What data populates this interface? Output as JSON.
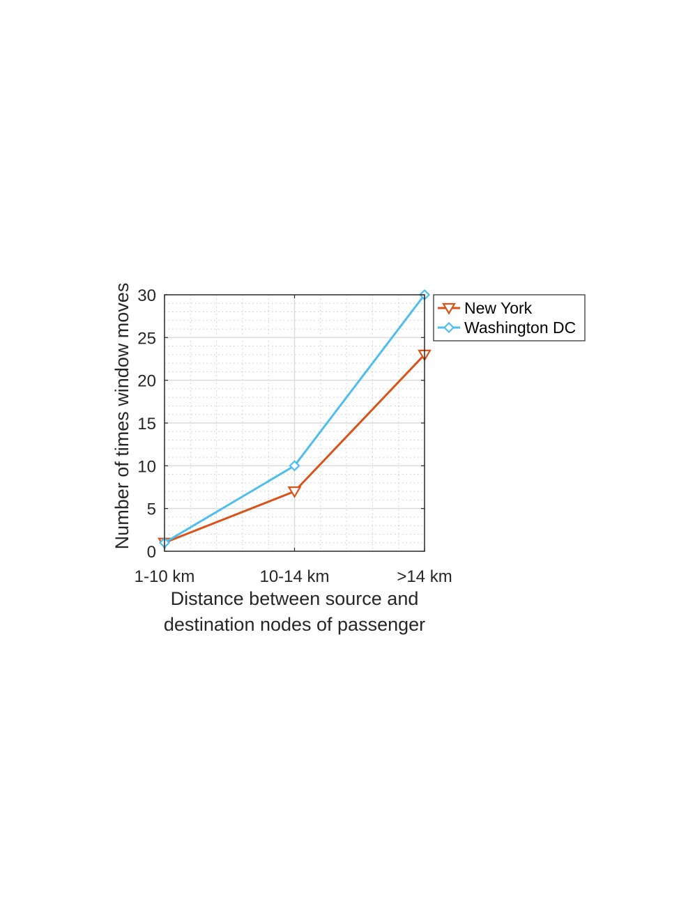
{
  "chart_data": {
    "type": "line",
    "categories": [
      "1-10 km",
      "10-14 km",
      ">14 km"
    ],
    "series": [
      {
        "name": "New York",
        "values": [
          1,
          7,
          23
        ],
        "color": "#D95319",
        "marker": "triangle-down"
      },
      {
        "name": "Washington DC",
        "values": [
          1,
          10,
          30
        ],
        "color": "#4DBEEE",
        "marker": "diamond"
      }
    ],
    "xlabel": [
      "Distance between source and",
      "destination nodes of passenger"
    ],
    "ylabel": "Number of times window moves",
    "ylim": [
      0,
      30
    ],
    "yticks": [
      0,
      5,
      10,
      15,
      20,
      25,
      30
    ],
    "grid": true,
    "minor_grid": true,
    "legend_position": "outside top-right"
  }
}
